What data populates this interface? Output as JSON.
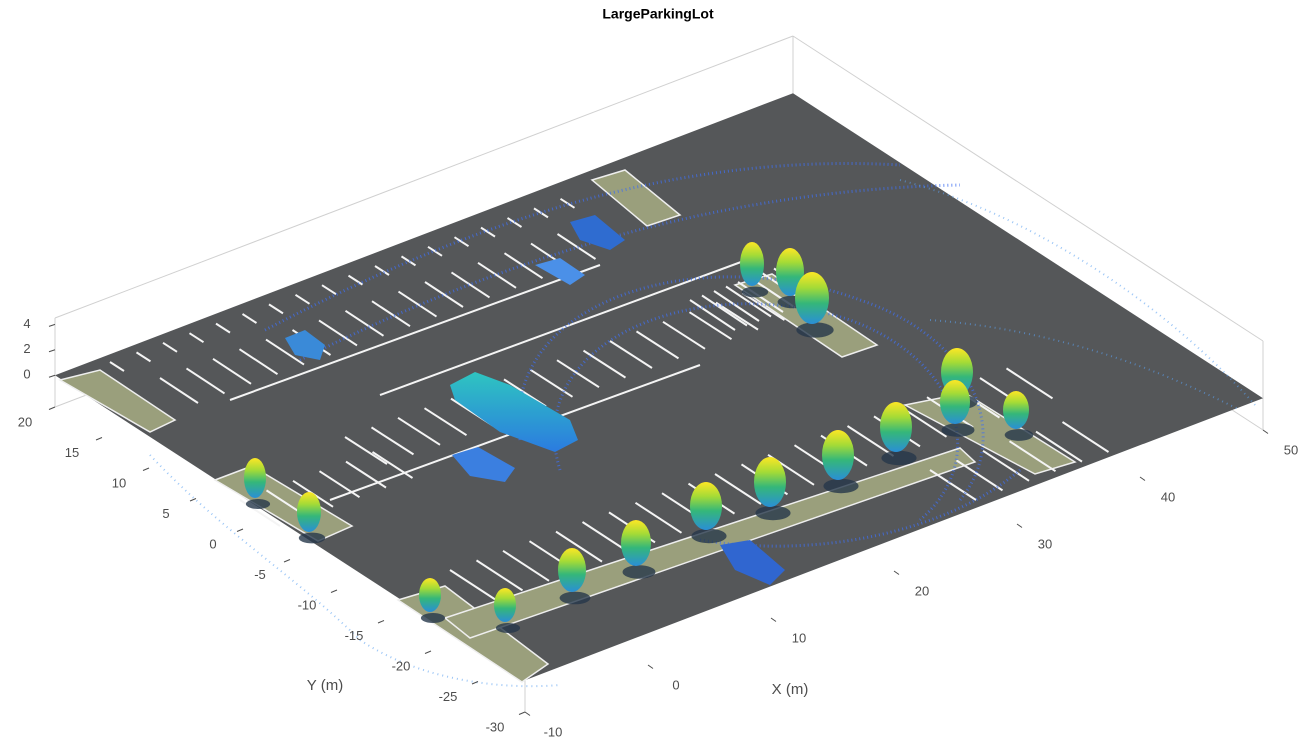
{
  "chart_data": {
    "type": "pointcloud3d",
    "title": "LargeParkingLot",
    "x_label": "X (m)",
    "y_label": "Y (m)",
    "xlim": [
      -10,
      50
    ],
    "ylim": [
      -30,
      20
    ],
    "zlim": [
      -2.5,
      4.5
    ],
    "xticks": [
      -10,
      0,
      10,
      20,
      30,
      40,
      50
    ],
    "yticks": [
      -30,
      -25,
      -20,
      -15,
      -10,
      -5,
      0,
      5,
      10,
      15,
      20
    ],
    "zticks": [
      0,
      2,
      4
    ],
    "box": true
  }
}
